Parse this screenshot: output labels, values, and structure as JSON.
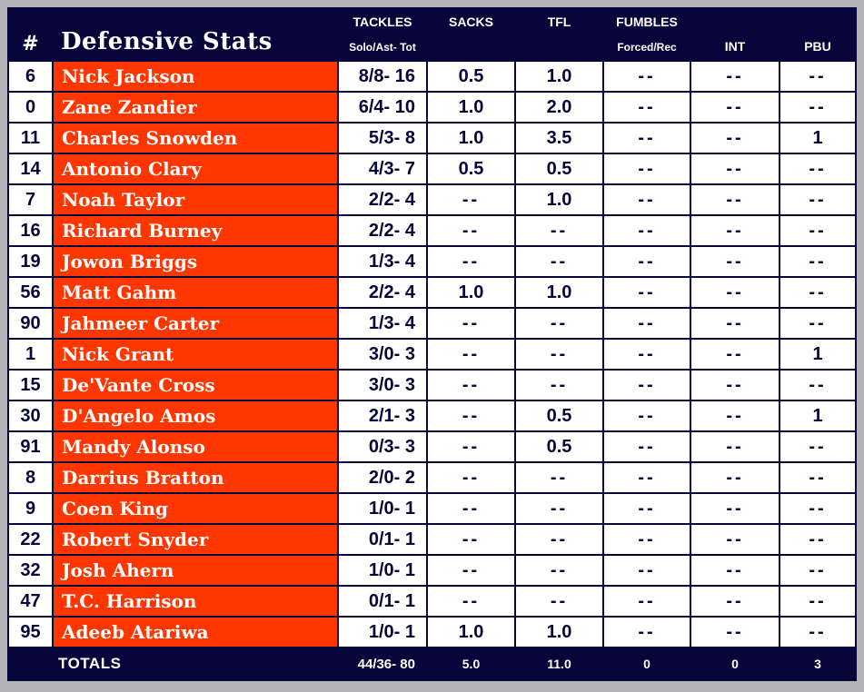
{
  "colors": {
    "navy": "#06063a",
    "orange": "#ff3600",
    "cell_white": "#ffffff",
    "frame_gray": "#b4b4b6"
  },
  "table": {
    "header": {
      "number_symbol": "#",
      "title": "Defensive Stats",
      "columns": [
        {
          "key": "tackles",
          "top": "TACKLES",
          "bottom": "Solo/Ast- Tot"
        },
        {
          "key": "sacks",
          "top": "SACKS",
          "bottom": ""
        },
        {
          "key": "tfl",
          "top": "TFL",
          "bottom": ""
        },
        {
          "key": "fumbles",
          "top": "FUMBLES",
          "bottom": "Forced/Rec"
        },
        {
          "key": "int",
          "top": "",
          "bottom": "INT"
        },
        {
          "key": "pbu",
          "top": "",
          "bottom": "PBU"
        }
      ]
    },
    "rows": [
      {
        "number": "6",
        "name": "Nick Jackson",
        "tackles": "8/8- 16",
        "sacks": "0.5",
        "tfl": "1.0",
        "fumbles": "--",
        "int": "--",
        "pbu": "--"
      },
      {
        "number": "0",
        "name": "Zane Zandier",
        "tackles": "6/4- 10",
        "sacks": "1.0",
        "tfl": "2.0",
        "fumbles": "--",
        "int": "--",
        "pbu": "--"
      },
      {
        "number": "11",
        "name": "Charles Snowden",
        "tackles": "5/3- 8",
        "sacks": "1.0",
        "tfl": "3.5",
        "fumbles": "--",
        "int": "--",
        "pbu": "1"
      },
      {
        "number": "14",
        "name": "Antonio Clary",
        "tackles": "4/3- 7",
        "sacks": "0.5",
        "tfl": "0.5",
        "fumbles": "--",
        "int": "--",
        "pbu": "--"
      },
      {
        "number": "7",
        "name": "Noah Taylor",
        "tackles": "2/2- 4",
        "sacks": "--",
        "tfl": "1.0",
        "fumbles": "--",
        "int": "--",
        "pbu": "--"
      },
      {
        "number": "16",
        "name": "Richard Burney",
        "tackles": "2/2- 4",
        "sacks": "--",
        "tfl": "--",
        "fumbles": "--",
        "int": "--",
        "pbu": "--"
      },
      {
        "number": "19",
        "name": "Jowon Briggs",
        "tackles": "1/3- 4",
        "sacks": "--",
        "tfl": "--",
        "fumbles": "--",
        "int": "--",
        "pbu": "--"
      },
      {
        "number": "56",
        "name": "Matt Gahm",
        "tackles": "2/2- 4",
        "sacks": "1.0",
        "tfl": "1.0",
        "fumbles": "--",
        "int": "--",
        "pbu": "--"
      },
      {
        "number": "90",
        "name": "Jahmeer Carter",
        "tackles": "1/3- 4",
        "sacks": "--",
        "tfl": "--",
        "fumbles": "--",
        "int": "--",
        "pbu": "--"
      },
      {
        "number": "1",
        "name": "Nick Grant",
        "tackles": "3/0- 3",
        "sacks": "--",
        "tfl": "--",
        "fumbles": "--",
        "int": "--",
        "pbu": "1"
      },
      {
        "number": "15",
        "name": "De'Vante Cross",
        "tackles": "3/0- 3",
        "sacks": "--",
        "tfl": "--",
        "fumbles": "--",
        "int": "--",
        "pbu": "--"
      },
      {
        "number": "30",
        "name": "D'Angelo Amos",
        "tackles": "2/1- 3",
        "sacks": "--",
        "tfl": "0.5",
        "fumbles": "--",
        "int": "--",
        "pbu": "1"
      },
      {
        "number": "91",
        "name": "Mandy Alonso",
        "tackles": "0/3- 3",
        "sacks": "--",
        "tfl": "0.5",
        "fumbles": "--",
        "int": "--",
        "pbu": "--"
      },
      {
        "number": "8",
        "name": "Darrius Bratton",
        "tackles": "2/0- 2",
        "sacks": "--",
        "tfl": "--",
        "fumbles": "--",
        "int": "--",
        "pbu": "--"
      },
      {
        "number": "9",
        "name": "Coen King",
        "tackles": "1/0- 1",
        "sacks": "--",
        "tfl": "--",
        "fumbles": "--",
        "int": "--",
        "pbu": "--"
      },
      {
        "number": "22",
        "name": "Robert Snyder",
        "tackles": "0/1- 1",
        "sacks": "--",
        "tfl": "--",
        "fumbles": "--",
        "int": "--",
        "pbu": "--"
      },
      {
        "number": "32",
        "name": "Josh Ahern",
        "tackles": "1/0- 1",
        "sacks": "--",
        "tfl": "--",
        "fumbles": "--",
        "int": "--",
        "pbu": "--"
      },
      {
        "number": "47",
        "name": "T.C. Harrison",
        "tackles": "0/1- 1",
        "sacks": "--",
        "tfl": "--",
        "fumbles": "--",
        "int": "--",
        "pbu": "--"
      },
      {
        "number": "95",
        "name": "Adeeb Atariwa",
        "tackles": "1/0- 1",
        "sacks": "1.0",
        "tfl": "1.0",
        "fumbles": "--",
        "int": "--",
        "pbu": "--"
      }
    ],
    "totals": {
      "label": "TOTALS",
      "tackles": "44/36- 80",
      "sacks": "5.0",
      "tfl": "11.0",
      "fumbles": "0",
      "int": "0",
      "pbu": "3"
    }
  }
}
